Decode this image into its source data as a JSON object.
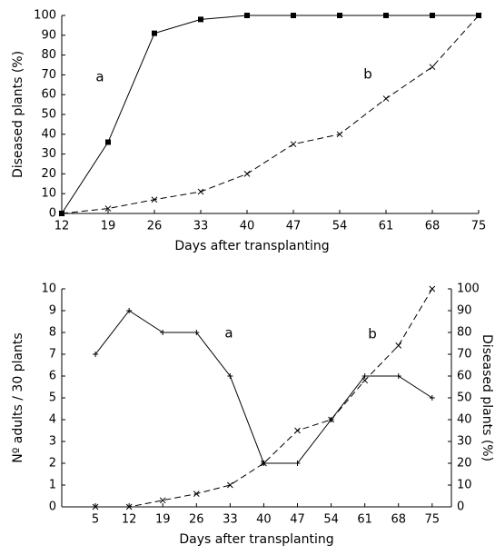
{
  "chart_data": [
    {
      "type": "line",
      "x_label": "Days after transplanting",
      "y_label": "Diseased plants (%)",
      "x": [
        12,
        19,
        26,
        33,
        40,
        47,
        54,
        61,
        68,
        75
      ],
      "xlim": [
        12,
        75
      ],
      "xticks": [
        12,
        19,
        26,
        33,
        40,
        47,
        54,
        61,
        68,
        75
      ],
      "ylim": [
        0,
        100
      ],
      "yticks": [
        0,
        10,
        20,
        30,
        40,
        50,
        60,
        70,
        80,
        90,
        100
      ],
      "series": [
        {
          "name": "a",
          "color": "#000000",
          "dash": false,
          "marker": "square",
          "values": [
            0,
            36,
            91,
            98,
            100,
            100,
            100,
            100,
            100,
            100
          ]
        },
        {
          "name": "b",
          "color": "#000000",
          "dash": true,
          "marker": "x",
          "values": [
            0,
            2.5,
            7,
            11,
            20,
            35,
            40,
            58,
            74,
            100
          ]
        }
      ]
    },
    {
      "type": "line",
      "x_label": "Days after transplanting",
      "y_label": "Nº adults / 30 plants",
      "y2_label": "Diseased plants (%)",
      "x": [
        5,
        12,
        19,
        26,
        33,
        40,
        47,
        54,
        61,
        68,
        75
      ],
      "xlim": [
        -2,
        79
      ],
      "xticks": [
        5,
        12,
        19,
        26,
        33,
        40,
        47,
        54,
        61,
        68,
        75
      ],
      "ylim": [
        0,
        10
      ],
      "yticks": [
        0,
        1,
        2,
        3,
        4,
        5,
        6,
        7,
        8,
        9,
        10
      ],
      "y2lim": [
        0,
        100
      ],
      "y2ticks": [
        0,
        10,
        20,
        30,
        40,
        50,
        60,
        70,
        80,
        90,
        100
      ],
      "series": [
        {
          "name": "a",
          "color": "#000000",
          "dash": false,
          "marker": "plus",
          "values": [
            7,
            9,
            8,
            8,
            6,
            2,
            2,
            4,
            6,
            6,
            5
          ]
        },
        {
          "name": "b",
          "color": "#000000",
          "dash": true,
          "marker": "x",
          "axis": "y2",
          "values": [
            0,
            0,
            3,
            6,
            10,
            20,
            35,
            40,
            58,
            74,
            100
          ]
        }
      ]
    }
  ]
}
